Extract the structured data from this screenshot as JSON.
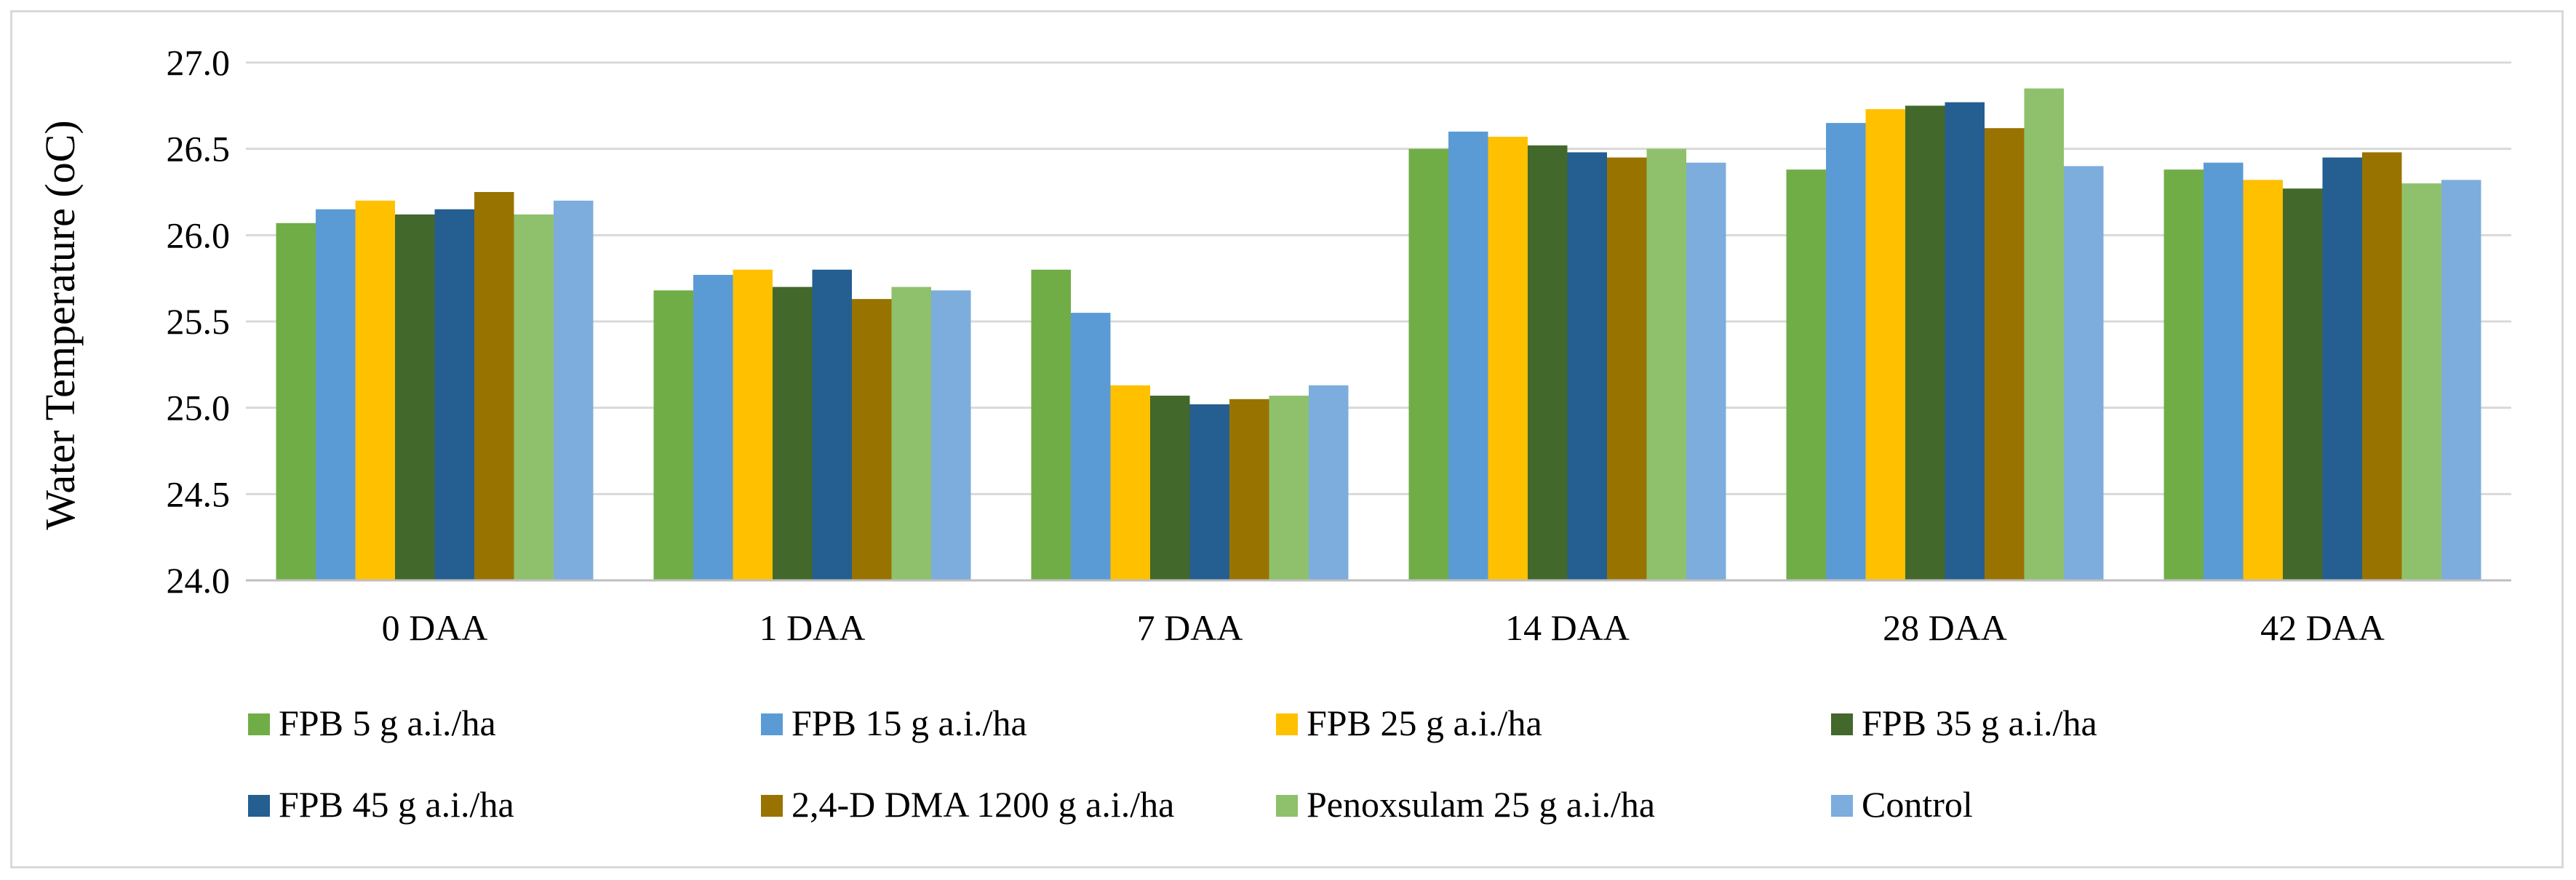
{
  "chart_data": {
    "type": "bar",
    "title": "",
    "xlabel": "",
    "ylabel": "Water Temperature (oC)",
    "ylim": [
      24.0,
      27.0
    ],
    "yticks": [
      "24.0",
      "24.5",
      "25.0",
      "25.5",
      "26.0",
      "26.5",
      "27.0"
    ],
    "grid": true,
    "legend_position": "bottom",
    "categories": [
      "0 DAA",
      "1 DAA",
      "7 DAA",
      "14 DAA",
      "28 DAA",
      "42 DAA"
    ],
    "series": [
      {
        "name": "FPB 5 g a.i./ha",
        "color": "#70ad47",
        "values": [
          26.07,
          25.68,
          25.8,
          26.5,
          26.38,
          26.38
        ]
      },
      {
        "name": "FPB 15 g a.i./ha",
        "color": "#5b9bd5",
        "values": [
          26.15,
          25.77,
          25.55,
          26.6,
          26.65,
          26.42
        ]
      },
      {
        "name": "FPB 25 g a.i./ha",
        "color": "#ffc000",
        "values": [
          26.2,
          25.8,
          25.13,
          26.57,
          26.73,
          26.32
        ]
      },
      {
        "name": "FPB 35 g a.i./ha",
        "color": "#43682b",
        "values": [
          26.12,
          25.7,
          25.07,
          26.52,
          26.75,
          26.27
        ]
      },
      {
        "name": "FPB 45 g a.i./ha",
        "color": "#255e91",
        "values": [
          26.15,
          25.8,
          25.02,
          26.48,
          26.77,
          26.45
        ]
      },
      {
        "name": "2,4-D DMA 1200 g a.i./ha",
        "color": "#997300",
        "values": [
          26.25,
          25.63,
          25.05,
          26.45,
          26.62,
          26.48
        ]
      },
      {
        "name": "Penoxsulam 25 g a.i./ha",
        "color": "#8fc16c",
        "values": [
          26.12,
          25.7,
          25.07,
          26.5,
          26.85,
          26.3
        ]
      },
      {
        "name": "Control",
        "color": "#7caddd",
        "values": [
          26.2,
          25.68,
          25.13,
          26.42,
          26.4,
          26.32
        ]
      }
    ]
  }
}
